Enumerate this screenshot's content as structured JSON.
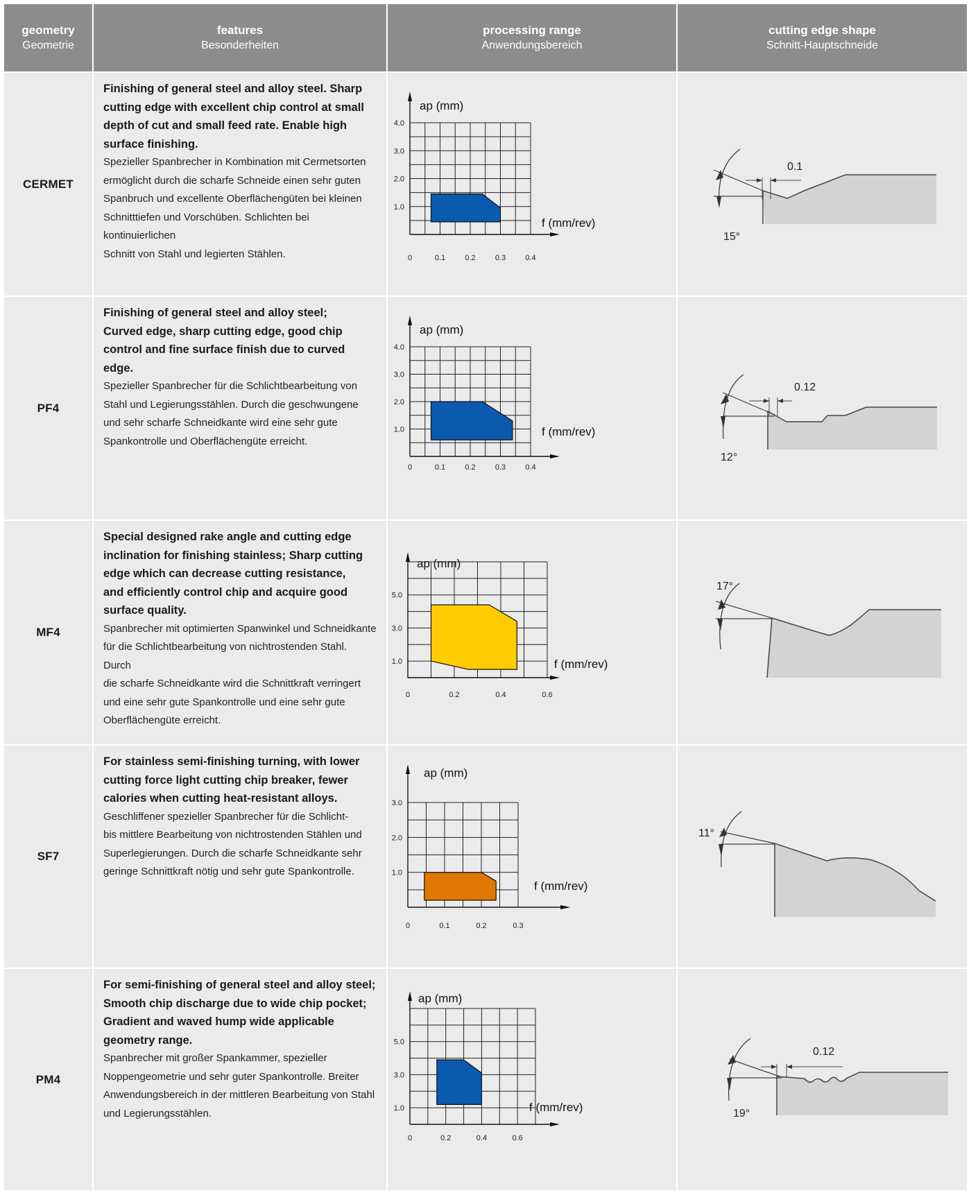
{
  "header": {
    "geometry_en": "geometry",
    "geometry_de": "Geometrie",
    "features_en": "features",
    "features_de": "Besonderheiten",
    "range_en": "processing range",
    "range_de": "Anwendungsbereich",
    "shape_en": "cutting edge shape",
    "shape_de": "Schnitt-Hauptschneide"
  },
  "colors": {
    "header_bg": "#8c8c8c",
    "row_bg": "#ebebeb",
    "blue": "#0a5bb0",
    "yellow": "#ffcc00",
    "orange": "#e07700",
    "edge_fill": "#d3d3d3"
  },
  "rows": [
    {
      "geometry": "CERMET",
      "features_en": "Finishing of general steel and alloy steel. Sharp\ncutting edge with excellent chip control at small\ndepth of cut and small feed rate. Enable high\nsurface finishing.",
      "features_de": "Spezieller Spanbrecher in Kombination mit Cermetsorten\nermöglicht durch die scharfe Schneide einen sehr guten\nSpanbruch und excellente Oberflächengüten bei kleinen\nSchnitttiefen und Vorschüben. Schlichten bei kontinuierlichen\nSchnitt von Stahl und legierten Stählen.",
      "edge": {
        "angle_label": "15°",
        "land_label": "0.1"
      }
    },
    {
      "geometry": "PF4",
      "features_en": "Finishing of general steel and alloy steel;\nCurved edge, sharp cutting edge, good chip\ncontrol and fine surface finish due to curved edge.",
      "features_de": "Spezieller Spanbrecher für die Schlichtbearbeitung von\nStahl und Legierungsstählen. Durch die geschwungene\nund sehr scharfe Schneidkante wird eine sehr gute\nSpankontrolle und Oberflächengüte erreicht.",
      "edge": {
        "angle_label": "12°",
        "land_label": "0.12"
      }
    },
    {
      "geometry": "MF4",
      "features_en": "Special designed rake angle and cutting edge\ninclination for finishing stainless; Sharp cutting\nedge which can decrease cutting resistance,\nand efficiently control chip and acquire good\nsurface quality.",
      "features_de": "Spanbrecher mit optimierten Spanwinkel und Schneidkante\nfür die Schlichtbearbeitung von nichtrostenden Stahl. Durch\ndie scharfe Schneidkante wird die Schnittkraft verringert\nund eine sehr gute Spankontrolle und eine sehr gute\nOberflächengüte erreicht.",
      "edge": {
        "angle_label": "17°",
        "land_label": ""
      }
    },
    {
      "geometry": "SF7",
      "features_en": "For stainless semi-finishing turning, with lower\ncutting force light cutting chip breaker, fewer\ncalories when cutting heat-resistant alloys.",
      "features_de": "Geschliffener spezieller Spanbrecher für die Schlicht-\nbis mittlere Bearbeitung von nichtrostenden Stählen und\nSuperlegierungen. Durch die scharfe Schneidkante sehr\ngeringe Schnittkraft nötig und sehr gute Spankontrolle.",
      "edge": {
        "angle_label": "11°",
        "land_label": ""
      }
    },
    {
      "geometry": "PM4",
      "features_en": "For semi-finishing of general steel and alloy steel;\nSmooth chip discharge due to wide chip pocket;\nGradient and waved hump wide applicable\ngeometry range.",
      "features_de": "Spanbrecher mit großer Spankammer, spezieller\nNoppengeometrie und sehr guter Spankontrolle. Breiter\nAnwendungsbereich in der mittleren Bearbeitung von Stahl\nund Legierungsstählen.",
      "edge": {
        "angle_label": "19°",
        "land_label": "0.12"
      }
    }
  ],
  "chart_data": [
    {
      "type": "area",
      "title": "",
      "xlabel": "f (mm/rev)",
      "ylabel": "ap (mm)",
      "xlim": [
        0,
        0.4
      ],
      "ylim": [
        0,
        4.0
      ],
      "x_ticks": [
        "0",
        "0.1",
        "0.2",
        "0.3",
        "0.4"
      ],
      "y_ticks": [
        "1.0",
        "2.0",
        "3.0",
        "4.0"
      ],
      "grid": true,
      "region_color": "#0a5bb0",
      "region": [
        [
          0.07,
          0.45
        ],
        [
          0.07,
          1.45
        ],
        [
          0.24,
          1.45
        ],
        [
          0.3,
          0.95
        ],
        [
          0.3,
          0.45
        ]
      ]
    },
    {
      "type": "area",
      "title": "",
      "xlabel": "f (mm/rev)",
      "ylabel": "ap (mm)",
      "xlim": [
        0,
        0.4
      ],
      "ylim": [
        0,
        4.0
      ],
      "x_ticks": [
        "0",
        "0.1",
        "0.2",
        "0.3",
        "0.4"
      ],
      "y_ticks": [
        "1.0",
        "2.0",
        "3.0",
        "4.0"
      ],
      "grid": true,
      "region_color": "#0a5bb0",
      "region": [
        [
          0.07,
          0.6
        ],
        [
          0.07,
          2.0
        ],
        [
          0.24,
          2.0
        ],
        [
          0.34,
          1.3
        ],
        [
          0.34,
          0.6
        ]
      ]
    },
    {
      "type": "area",
      "title": "",
      "xlabel": "f (mm/rev)",
      "ylabel": "ap (mm)",
      "xlim": [
        0,
        0.6
      ],
      "ylim": [
        0,
        7.0
      ],
      "x_ticks": [
        "0",
        "0.2",
        "0.4",
        "0.6"
      ],
      "y_ticks": [
        "1.0",
        "3.0",
        "5.0"
      ],
      "grid": true,
      "region_color": "#ffcc00",
      "region": [
        [
          0.1,
          1.0
        ],
        [
          0.1,
          4.4
        ],
        [
          0.35,
          4.4
        ],
        [
          0.47,
          3.4
        ],
        [
          0.47,
          0.5
        ],
        [
          0.26,
          0.5
        ]
      ]
    },
    {
      "type": "area",
      "title": "",
      "xlabel": "f (mm/rev)",
      "ylabel": "ap (mm)",
      "xlim": [
        0,
        0.3
      ],
      "ylim": [
        0,
        3.0
      ],
      "x_ticks": [
        "0",
        "0.1",
        "0.2",
        "0.3"
      ],
      "y_ticks": [
        "1.0",
        "2.0",
        "3.0"
      ],
      "grid": true,
      "region_color": "#e07700",
      "region": [
        [
          0.045,
          0.2
        ],
        [
          0.045,
          1.0
        ],
        [
          0.2,
          1.0
        ],
        [
          0.24,
          0.75
        ],
        [
          0.24,
          0.2
        ]
      ]
    },
    {
      "type": "area",
      "title": "",
      "xlabel": "f (mm/rev)",
      "ylabel": "ap (mm)",
      "xlim": [
        0,
        0.7
      ],
      "ylim": [
        0,
        7.0
      ],
      "x_ticks": [
        "0",
        "0.2",
        "0.4",
        "0.6"
      ],
      "y_ticks": [
        "1.0",
        "3.0",
        "5.0"
      ],
      "grid": true,
      "region_color": "#0a5bb0",
      "region": [
        [
          0.15,
          1.2
        ],
        [
          0.15,
          3.9
        ],
        [
          0.3,
          3.9
        ],
        [
          0.4,
          3.1
        ],
        [
          0.4,
          1.2
        ]
      ]
    }
  ]
}
